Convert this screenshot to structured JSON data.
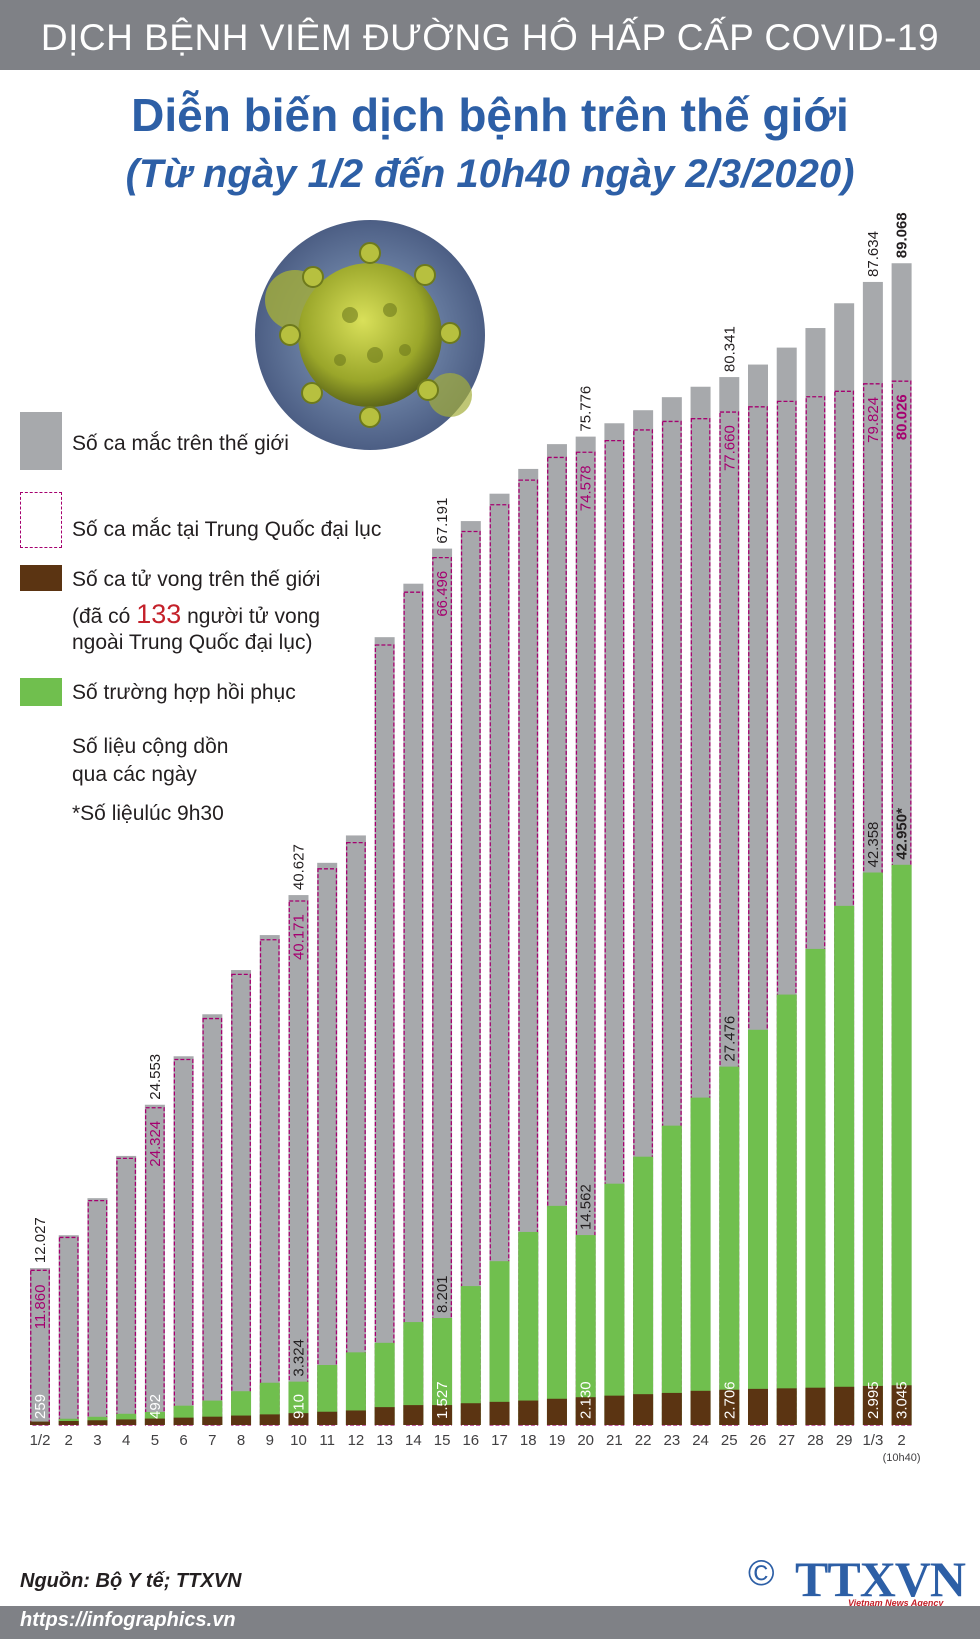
{
  "header": {
    "topbar": "DỊCH BỆNH VIÊM ĐƯỜNG HÔ HẤP CẤP COVID-19",
    "title": "Diễn biến dịch bệnh trên thế giới",
    "subtitle": "(Từ ngày 1/2 đến 10h40 ngày 2/3/2020)"
  },
  "legend": {
    "world_cases": "Số ca mắc trên thế giới",
    "china_cases": "Số ca mắc tại Trung Quốc đại lục",
    "deaths": "Số ca tử vong trên thế giới",
    "deaths_note_pre": "(đã có",
    "deaths_note_num": "133",
    "deaths_note_post": "người tử vong",
    "deaths_note_line2": "ngoài Trung Quốc đại lục)",
    "recovered": "Số trường hợp hồi phục",
    "cumulative_line1": "Số liệu cộng dồn",
    "cumulative_line2": "qua các ngày",
    "footnote": "*Số liệulúc 9h30"
  },
  "colors": {
    "world": "#a7a9ac",
    "china_border": "#a5006f",
    "deaths": "#5b3412",
    "recovered": "#70bf4e",
    "title_blue": "#2d5fa6"
  },
  "footer": {
    "source": "Nguồn: Bộ Y tế; TTXVN",
    "url": "https://infographics.vn",
    "copyright": "©",
    "logo": "TTXVN",
    "logo_sub": "Vietnam News Agency"
  },
  "chart_data": {
    "type": "bar",
    "categories": [
      "1/2",
      "2",
      "3",
      "4",
      "5",
      "6",
      "7",
      "8",
      "9",
      "10",
      "11",
      "12",
      "13",
      "14",
      "15",
      "16",
      "17",
      "18",
      "19",
      "20",
      "21",
      "22",
      "23",
      "24",
      "25",
      "26",
      "27",
      "28",
      "29",
      "1/3",
      "2"
    ],
    "last_category_note": "(10h40)",
    "series": [
      {
        "name": "Số ca mắc trên thế giới",
        "values": [
          12027,
          14550,
          17390,
          20630,
          24553,
          28270,
          31490,
          34880,
          37560,
          40627,
          43100,
          45200,
          60400,
          64500,
          67191,
          69300,
          71400,
          73300,
          75200,
          75776,
          76800,
          77800,
          78800,
          79600,
          80341,
          81300,
          82600,
          84100,
          86000,
          87634,
          89068
        ]
      },
      {
        "name": "Số ca mắc tại Trung Quốc đại lục",
        "values": [
          11860,
          14380,
          17200,
          20440,
          24324,
          28020,
          31160,
          34550,
          37200,
          40171,
          42640,
          44650,
          59800,
          63850,
          66496,
          68500,
          70550,
          72440,
          74180,
          74578,
          75470,
          76290,
          76940,
          77150,
          77660,
          78060,
          78480,
          78830,
          79250,
          79824,
          80026
        ]
      },
      {
        "name": "Số ca tử vong trên thế giới",
        "values": [
          259,
          305,
          362,
          427,
          492,
          565,
          638,
          724,
          813,
          910,
          1017,
          1114,
          1370,
          1524,
          1527,
          1669,
          1775,
          1874,
          2011,
          2130,
          2250,
          2363,
          2460,
          2620,
          2706,
          2770,
          2810,
          2860,
          2930,
          2995,
          3045
        ]
      },
      {
        "name": "Số trường hợp hồi phục",
        "values": [
          260,
          480,
          630,
          860,
          1000,
          1480,
          1870,
          2590,
          3240,
          3324,
          4600,
          5570,
          6300,
          7890,
          8201,
          10650,
          12560,
          14800,
          16800,
          14562,
          18500,
          20570,
          22950,
          25100,
          27476,
          30300,
          33000,
          36500,
          39800,
          42358,
          42950
        ]
      }
    ],
    "value_labels": {
      "world": {
        "0": "12.027",
        "4": "24.553",
        "9": "40.627",
        "14": "67.191",
        "19": "75.776",
        "24": "80.341",
        "29": "87.634",
        "30": "89.068"
      },
      "china": {
        "0": "11.860",
        "4": "24.324",
        "9": "40.171",
        "14": "66.496",
        "19": "74.578",
        "24": "77.660",
        "29": "79.824",
        "30": "80.026"
      },
      "deaths": {
        "0": "259",
        "4": "492",
        "9": "910",
        "14": "1.527",
        "19": "2.130",
        "24": "2.706",
        "29": "2.995",
        "30": "3.045"
      },
      "recovered": {
        "9": "3.324",
        "14": "8.201",
        "19": "14.562",
        "24": "27.476",
        "29": "42.358",
        "30": "42.950*"
      }
    },
    "ylim": [
      0,
      92000
    ]
  }
}
